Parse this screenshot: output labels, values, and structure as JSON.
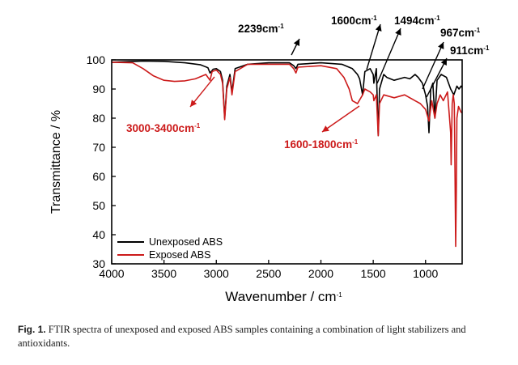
{
  "chart_data": {
    "type": "line",
    "xlabel": "Wavenumber / cm",
    "xlabel_sup": "-1",
    "ylabel": "Transmittance / %",
    "xlim": [
      4000,
      650
    ],
    "ylim": [
      30,
      100
    ],
    "x_ticks": [
      4000,
      3500,
      3000,
      2500,
      2000,
      1500,
      1000
    ],
    "y_ticks": [
      30,
      40,
      50,
      60,
      70,
      80,
      90,
      100
    ],
    "legend_position": "bottom-left",
    "series": [
      {
        "name": "Unexposed ABS",
        "color": "#000000",
        "points": [
          [
            4000,
            99.2
          ],
          [
            3700,
            99.6
          ],
          [
            3500,
            99.5
          ],
          [
            3300,
            99
          ],
          [
            3150,
            98.3
          ],
          [
            3080,
            97.3
          ],
          [
            3060,
            95.5
          ],
          [
            3030,
            96.8
          ],
          [
            3000,
            97
          ],
          [
            2960,
            96
          ],
          [
            2940,
            93
          ],
          [
            2920,
            80
          ],
          [
            2900,
            91
          ],
          [
            2870,
            95
          ],
          [
            2850,
            89
          ],
          [
            2820,
            97
          ],
          [
            2700,
            98.5
          ],
          [
            2500,
            99
          ],
          [
            2300,
            99
          ],
          [
            2260,
            98
          ],
          [
            2239,
            97
          ],
          [
            2220,
            98.5
          ],
          [
            2000,
            99
          ],
          [
            1800,
            98.5
          ],
          [
            1700,
            97
          ],
          [
            1650,
            95
          ],
          [
            1630,
            93.5
          ],
          [
            1602,
            88
          ],
          [
            1580,
            96
          ],
          [
            1530,
            97
          ],
          [
            1500,
            95
          ],
          [
            1494,
            92
          ],
          [
            1470,
            97
          ],
          [
            1452,
            74
          ],
          [
            1440,
            90
          ],
          [
            1400,
            95
          ],
          [
            1370,
            94
          ],
          [
            1300,
            93
          ],
          [
            1200,
            94
          ],
          [
            1150,
            93.5
          ],
          [
            1100,
            95
          ],
          [
            1070,
            94
          ],
          [
            1030,
            92
          ],
          [
            1000,
            88
          ],
          [
            980,
            84
          ],
          [
            967,
            75
          ],
          [
            950,
            90
          ],
          [
            930,
            92
          ],
          [
            911,
            80
          ],
          [
            890,
            93
          ],
          [
            850,
            95
          ],
          [
            800,
            94
          ],
          [
            760,
            90
          ],
          [
            730,
            88
          ],
          [
            700,
            91
          ],
          [
            680,
            90
          ],
          [
            660,
            91
          ],
          [
            650,
            90.5
          ]
        ]
      },
      {
        "name": "Exposed ABS",
        "color": "#cc1a1a",
        "points": [
          [
            4000,
            99.2
          ],
          [
            3800,
            99
          ],
          [
            3700,
            97
          ],
          [
            3600,
            94.5
          ],
          [
            3500,
            93
          ],
          [
            3400,
            92.6
          ],
          [
            3300,
            92.8
          ],
          [
            3200,
            93.5
          ],
          [
            3100,
            95
          ],
          [
            3060,
            93
          ],
          [
            3040,
            96
          ],
          [
            3000,
            96.5
          ],
          [
            2960,
            95
          ],
          [
            2940,
            92
          ],
          [
            2920,
            79.5
          ],
          [
            2900,
            90
          ],
          [
            2870,
            94
          ],
          [
            2850,
            88
          ],
          [
            2820,
            96
          ],
          [
            2700,
            98.5
          ],
          [
            2500,
            98.5
          ],
          [
            2300,
            98.5
          ],
          [
            2260,
            97
          ],
          [
            2239,
            95.5
          ],
          [
            2220,
            97.5
          ],
          [
            2000,
            98
          ],
          [
            1850,
            97
          ],
          [
            1780,
            94
          ],
          [
            1730,
            90
          ],
          [
            1700,
            86
          ],
          [
            1650,
            85
          ],
          [
            1602,
            88
          ],
          [
            1580,
            90
          ],
          [
            1530,
            89
          ],
          [
            1500,
            88
          ],
          [
            1494,
            86
          ],
          [
            1470,
            88
          ],
          [
            1452,
            74
          ],
          [
            1440,
            85
          ],
          [
            1400,
            88
          ],
          [
            1300,
            87
          ],
          [
            1200,
            88
          ],
          [
            1100,
            86
          ],
          [
            1050,
            85
          ],
          [
            1000,
            83
          ],
          [
            967,
            79
          ],
          [
            940,
            86
          ],
          [
            911,
            80
          ],
          [
            890,
            85
          ],
          [
            860,
            88
          ],
          [
            830,
            86
          ],
          [
            790,
            89
          ],
          [
            760,
            75
          ],
          [
            755,
            64
          ],
          [
            745,
            85
          ],
          [
            735,
            88
          ],
          [
            725,
            85
          ],
          [
            718,
            60
          ],
          [
            712,
            36
          ],
          [
            706,
            55
          ],
          [
            700,
            80
          ],
          [
            685,
            84
          ],
          [
            660,
            82
          ],
          [
            650,
            82
          ]
        ]
      }
    ],
    "annotations": [
      {
        "text": "2239cm",
        "sup": "-1",
        "color": "#000000"
      },
      {
        "text": "1600cm",
        "sup": "-1",
        "color": "#000000"
      },
      {
        "text": "1494cm",
        "sup": "-1",
        "color": "#000000"
      },
      {
        "text": "967cm",
        "sup": "-1",
        "color": "#000000"
      },
      {
        "text": "911cm",
        "sup": "-1",
        "color": "#000000"
      },
      {
        "text": "3000-3400cm",
        "sup": "-1",
        "color": "#cc1a1a"
      },
      {
        "text": "1600-1800cm",
        "sup": "-1",
        "color": "#cc1a1a"
      }
    ]
  },
  "caption": {
    "label": "Fig. 1.",
    "text": "FTIR spectra of unexposed and exposed ABS samples containing a combination of light stabilizers and antioxidants."
  }
}
